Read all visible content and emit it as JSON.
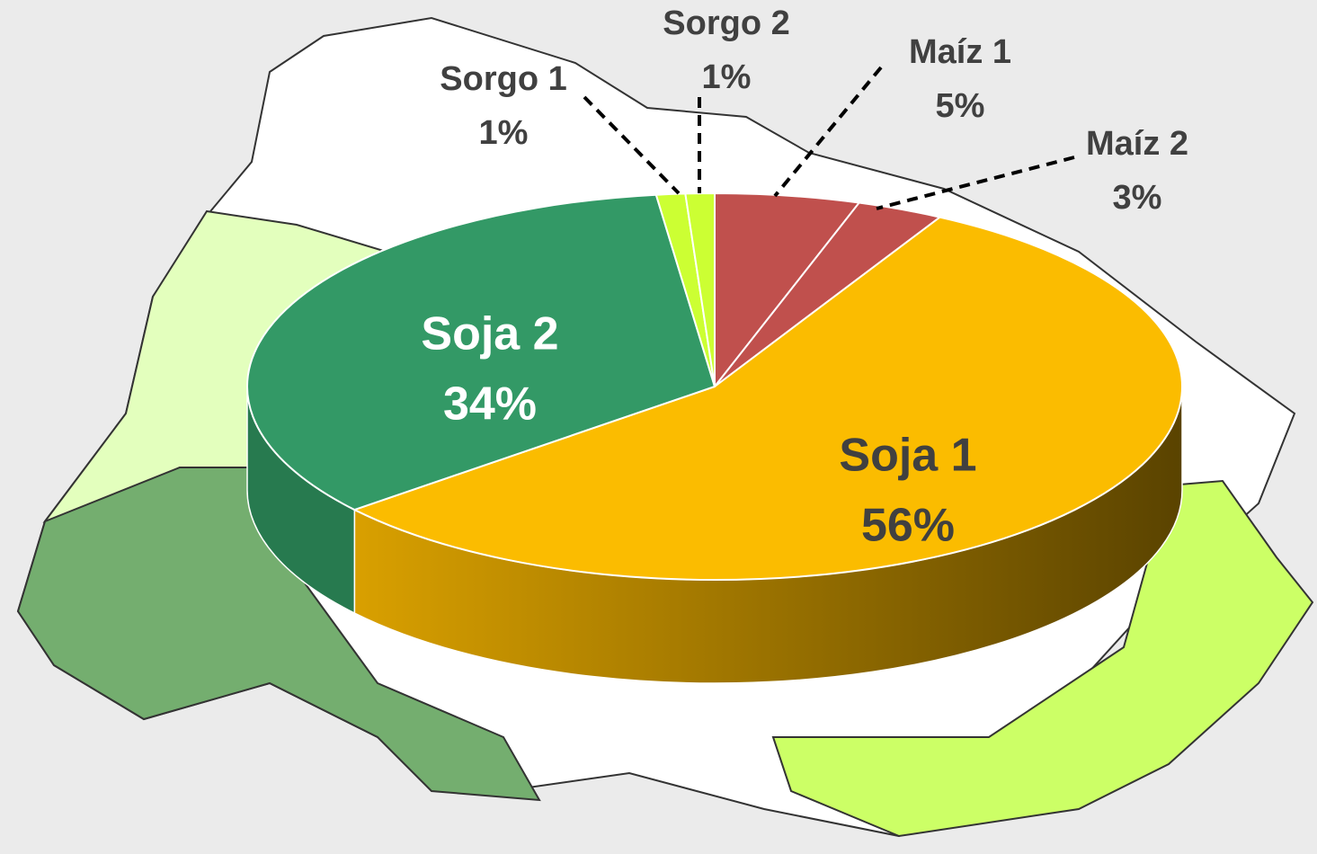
{
  "chart_data": {
    "type": "pie",
    "categories": [
      "Maíz 1",
      "Maíz 2",
      "Soja 1",
      "Soja 2",
      "Sorgo 1",
      "Sorgo 2"
    ],
    "values": [
      5,
      3,
      56,
      34,
      1,
      1
    ],
    "value_labels": [
      "5%",
      "3%",
      "56%",
      "34%",
      "1%",
      "1%"
    ],
    "colors": [
      "#c0504d",
      "#c0504d",
      "#fbbc00",
      "#339966",
      "#ccff33",
      "#ccff33"
    ]
  }
}
